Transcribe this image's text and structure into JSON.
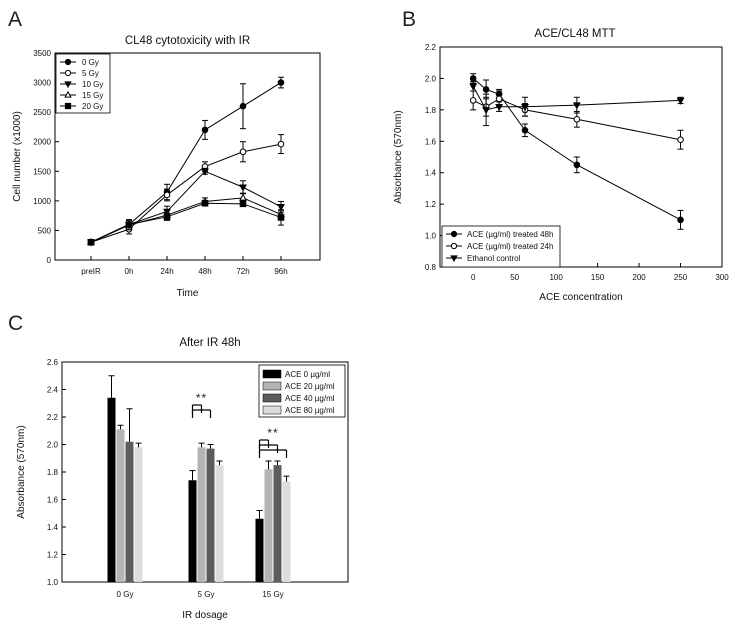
{
  "panels": [
    "A",
    "B",
    "C"
  ],
  "chart_data": [
    {
      "type": "line",
      "title": "CL48 cytotoxicity with IR",
      "xlabel": "Time",
      "ylabel": "Cell number (x1000)",
      "categories": [
        "preIR",
        "0h",
        "24h",
        "48h",
        "72h",
        "96h"
      ],
      "ylim": [
        0,
        3500
      ],
      "yticks": [
        0,
        500,
        1000,
        1500,
        2000,
        2500,
        3000,
        3500
      ],
      "legend_position": "top-left",
      "series": [
        {
          "name": "0 Gy",
          "marker": "circle-filled",
          "values": [
            300,
            600,
            1150,
            2200,
            2600,
            3000
          ],
          "errors": [
            30,
            80,
            130,
            160,
            380,
            90
          ]
        },
        {
          "name": "5 Gy",
          "marker": "circle-open",
          "values": [
            300,
            520,
            1100,
            1580,
            1830,
            1960
          ],
          "errors": [
            30,
            80,
            100,
            80,
            170,
            160
          ]
        },
        {
          "name": "10 Gy",
          "marker": "triangle-down-filled",
          "values": [
            300,
            600,
            820,
            1500,
            1230,
            900
          ],
          "errors": [
            30,
            80,
            90,
            50,
            110,
            90
          ]
        },
        {
          "name": "15 Gy",
          "marker": "triangle-up-open",
          "values": [
            300,
            590,
            760,
            990,
            1050,
            770
          ],
          "errors": [
            30,
            80,
            80,
            60,
            80,
            70
          ]
        },
        {
          "name": "20 Gy",
          "marker": "square-filled",
          "values": [
            300,
            600,
            730,
            960,
            950,
            720
          ],
          "errors": [
            30,
            80,
            60,
            30,
            40,
            130
          ]
        }
      ]
    },
    {
      "type": "line",
      "title": "ACE/CL48 MTT",
      "xlabel": "ACE concentration",
      "ylabel": "Absorbance (570nm)",
      "xlim": [
        -40,
        300
      ],
      "xticks": [
        0,
        50,
        100,
        150,
        200,
        250,
        300
      ],
      "ylim": [
        0.8,
        2.2
      ],
      "yticks": [
        "0.8",
        "1.0",
        "1.2",
        "1.4",
        "1.6",
        "1.8",
        "2.0",
        "2.2"
      ],
      "legend_position": "bottom-left",
      "series": [
        {
          "name": "ACE (µg/ml) treated 48h",
          "marker": "circle-filled",
          "x": [
            0,
            15.6,
            31.25,
            62.5,
            125,
            250
          ],
          "values": [
            2.0,
            1.93,
            1.9,
            1.67,
            1.45,
            1.1
          ],
          "errors": [
            0.03,
            0.06,
            0.03,
            0.04,
            0.05,
            0.06
          ]
        },
        {
          "name": "ACE (µg/ml) treated 24h",
          "marker": "circle-open",
          "x": [
            0,
            15.6,
            31.25,
            62.5,
            125,
            250
          ],
          "values": [
            1.86,
            1.82,
            1.87,
            1.8,
            1.74,
            1.61
          ],
          "errors": [
            0.06,
            0.06,
            0.05,
            0.04,
            0.05,
            0.06
          ]
        },
        {
          "name": "Ethanol control",
          "marker": "triangle-down-filled",
          "x": [
            0,
            15.6,
            31.25,
            62.5,
            125,
            250
          ],
          "values": [
            1.95,
            1.8,
            1.82,
            1.82,
            1.83,
            1.86
          ],
          "errors": [
            0.03,
            0.1,
            0.03,
            0.06,
            0.05,
            0.02
          ]
        }
      ]
    },
    {
      "type": "bar",
      "title": "After IR 48h",
      "xlabel": "IR dosage",
      "ylabel": "Absorbance (570nm)",
      "categories": [
        "0 Gy",
        "5 Gy",
        "15 Gy"
      ],
      "ylim": [
        1.0,
        2.6
      ],
      "yticks": [
        "1.0",
        "1.2",
        "1.4",
        "1.6",
        "1.8",
        "2.0",
        "2.2",
        "2.4",
        "2.6"
      ],
      "legend_position": "top-right",
      "series": [
        {
          "name": "ACE 0 µg/ml",
          "color": "#000000",
          "values": [
            2.34,
            1.74,
            1.46
          ],
          "errors": [
            0.16,
            0.07,
            0.06
          ]
        },
        {
          "name": "ACE 20 µg/ml",
          "color": "#b4b4b4",
          "values": [
            2.11,
            1.98,
            1.82
          ],
          "errors": [
            0.03,
            0.03,
            0.06
          ]
        },
        {
          "name": "ACE 40 µg/ml",
          "color": "#5c5c5c",
          "values": [
            2.02,
            1.97,
            1.85
          ],
          "errors": [
            0.24,
            0.03,
            0.03
          ]
        },
        {
          "name": "ACE 80 µg/ml",
          "color": "#dcdcdc",
          "values": [
            1.98,
            1.85,
            1.73
          ],
          "errors": [
            0.03,
            0.03,
            0.04
          ]
        }
      ],
      "annotations": [
        {
          "text": "**",
          "category": "5 Gy",
          "compares": [
            "ACE 0 µg/ml",
            "ACE 20 µg/ml",
            "ACE 40 µg/ml"
          ]
        },
        {
          "text": "**",
          "category": "15 Gy",
          "compares": [
            "ACE 0 µg/ml",
            "ACE 20 µg/ml",
            "ACE 40 µg/ml",
            "ACE 80 µg/ml"
          ]
        }
      ]
    }
  ]
}
